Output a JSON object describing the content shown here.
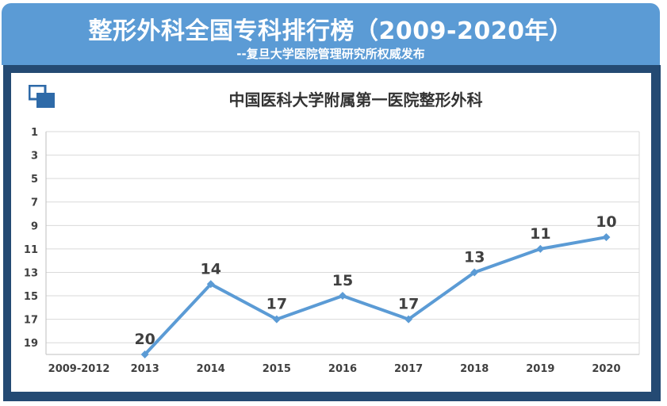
{
  "header": {
    "title": "整形外科全国专科排行榜（2009-2020年）",
    "subtitle": "--复旦大学医院管理研究所权威发布"
  },
  "colors": {
    "banner": "#5b9bd5",
    "frame": "#244a73",
    "line": "#5b9bd5",
    "icon": "#2e6aa8"
  },
  "icon": {
    "name": "window-copy-icon"
  },
  "chart_data": {
    "type": "line",
    "title": "中国医科大学附属第一医院整形外科",
    "xlabel": "",
    "ylabel": "",
    "categories": [
      "2009-2012",
      "2013",
      "2014",
      "2015",
      "2016",
      "2017",
      "2018",
      "2019",
      "2020"
    ],
    "series": [
      {
        "values": [
          null,
          20,
          14,
          17,
          15,
          17,
          13,
          11,
          10
        ]
      }
    ],
    "data_labels": [
      "",
      "20",
      "14",
      "17",
      "15",
      "17",
      "13",
      "11",
      "10"
    ],
    "y_ticks": [
      1,
      3,
      5,
      7,
      9,
      11,
      13,
      15,
      17,
      19
    ],
    "ylim": [
      1,
      20
    ],
    "y_reversed": true,
    "grid": true,
    "legend": "none"
  }
}
